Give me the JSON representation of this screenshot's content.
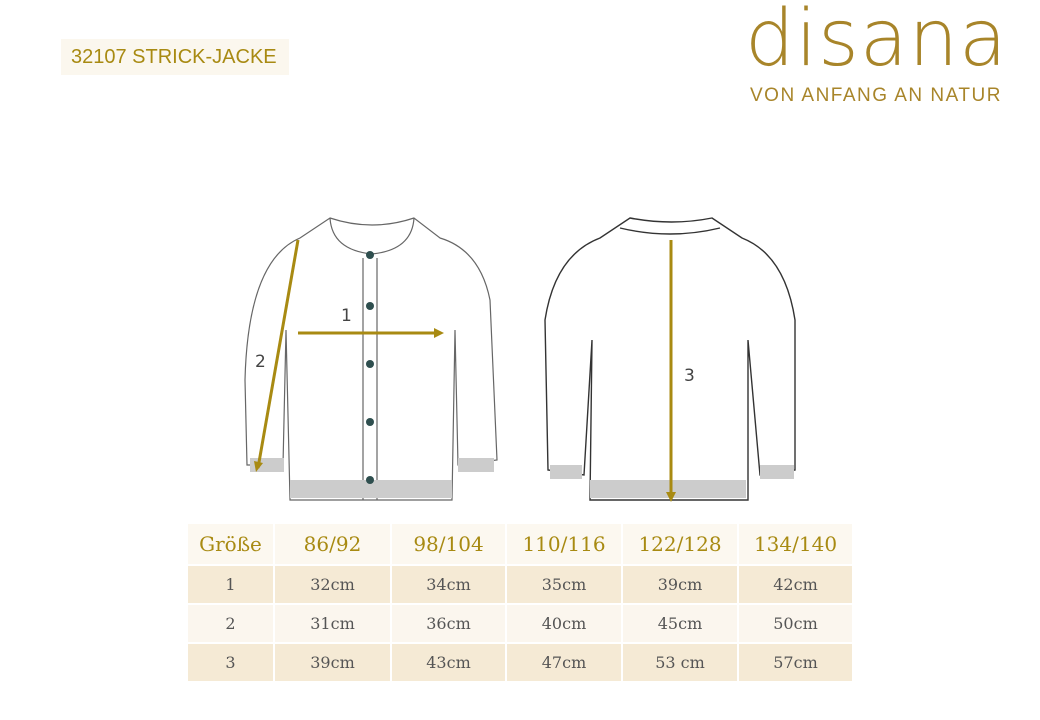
{
  "header": {
    "product_title": "32107 STRICK-JACKE"
  },
  "logo": {
    "wordmark": "disana",
    "tagline": "VON ANFANG AN NATUR",
    "color": "#a8852a"
  },
  "diagram": {
    "labels": [
      "1",
      "2",
      "3"
    ],
    "measure_color": "#a88a12"
  },
  "size_table": {
    "columns": [
      "Größe",
      "86/92",
      "98/104",
      "110/116",
      "122/128",
      "134/140"
    ],
    "rows": [
      [
        "1",
        "32cm",
        "34cm",
        "35cm",
        "39cm",
        "42cm"
      ],
      [
        "2",
        "31cm",
        "36cm",
        "40cm",
        "45cm",
        "50cm"
      ],
      [
        "3",
        "39cm",
        "43cm",
        "47cm",
        "53 cm",
        "57cm"
      ]
    ]
  }
}
